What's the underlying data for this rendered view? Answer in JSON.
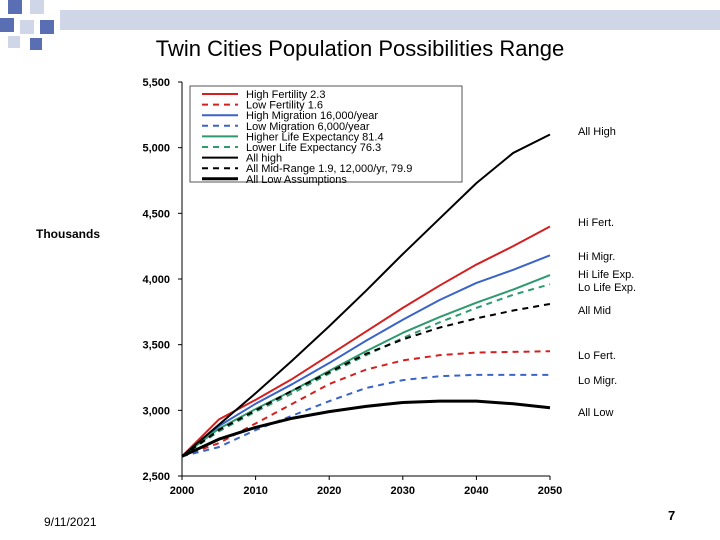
{
  "slide": {
    "title": "Twin Cities Population Possibilities Range",
    "date": "9/11/2021",
    "page_number": "7",
    "y_axis_label": "Thousands",
    "theme_color": "#cfd6e8",
    "theme_accent": "#5a6fb3"
  },
  "chart_data": {
    "type": "line",
    "title": "Twin Cities Population Possibilities Range",
    "xlabel": "",
    "ylabel": "Thousands",
    "xlim": [
      2000,
      2050
    ],
    "ylim": [
      2500,
      5500
    ],
    "x_ticks": [
      "2000",
      "2010",
      "2020",
      "2030",
      "2040",
      "2050"
    ],
    "y_ticks": [
      "2,500",
      "3,000",
      "3,500",
      "4,000",
      "4,500",
      "5,000",
      "5,500"
    ],
    "x": [
      2000,
      2005,
      2010,
      2015,
      2020,
      2025,
      2030,
      2035,
      2040,
      2045,
      2050
    ],
    "series": [
      {
        "name": "High Fertility 2.3",
        "color": "#d42020",
        "dash": "solid",
        "values": [
          2650,
          2930,
          3080,
          3240,
          3420,
          3600,
          3780,
          3950,
          4110,
          4250,
          4400
        ]
      },
      {
        "name": "Low Fertility 1.6",
        "color": "#d42020",
        "dash": "dashed",
        "values": [
          2650,
          2750,
          2900,
          3050,
          3200,
          3310,
          3380,
          3420,
          3440,
          3445,
          3450
        ]
      },
      {
        "name": "High Migration 16,000/year",
        "color": "#3a64c8",
        "dash": "solid",
        "values": [
          2650,
          2880,
          3050,
          3200,
          3360,
          3530,
          3690,
          3840,
          3970,
          4070,
          4180
        ]
      },
      {
        "name": "Low Migration 6,000/year",
        "color": "#3a64c8",
        "dash": "dashed",
        "values": [
          2650,
          2720,
          2850,
          2960,
          3070,
          3170,
          3230,
          3260,
          3270,
          3270,
          3270
        ]
      },
      {
        "name": "Higher Life Expectancy 81.4",
        "color": "#2e9a6e",
        "dash": "solid",
        "values": [
          2650,
          2860,
          3010,
          3150,
          3300,
          3450,
          3590,
          3710,
          3820,
          3920,
          4030
        ]
      },
      {
        "name": "Lower Life Expectancy 76.3",
        "color": "#2e9a6e",
        "dash": "dashed",
        "values": [
          2650,
          2840,
          2990,
          3130,
          3280,
          3420,
          3550,
          3670,
          3780,
          3880,
          3960
        ]
      },
      {
        "name": "All high",
        "color": "#000000",
        "dash": "solid",
        "values": [
          2650,
          2890,
          3130,
          3380,
          3640,
          3910,
          4190,
          4460,
          4730,
          4960,
          5100
        ]
      },
      {
        "name": "All Mid-Range 1.9, 12,000/yr, 79.9",
        "color": "#000000",
        "dash": "dashed",
        "values": [
          2650,
          2850,
          3000,
          3150,
          3290,
          3430,
          3540,
          3630,
          3700,
          3760,
          3810
        ]
      },
      {
        "name": "All Low Assumptions",
        "color": "#000000",
        "dash": "thick",
        "values": [
          2650,
          2780,
          2870,
          2940,
          2990,
          3030,
          3060,
          3070,
          3070,
          3050,
          3020
        ]
      }
    ],
    "right_annotations": [
      {
        "text": "All High",
        "value": 5100
      },
      {
        "text": "Hi Fert.",
        "value": 4400
      },
      {
        "text": "Hi Migr.",
        "value": 4180
      },
      {
        "text": "Hi Life Exp.",
        "value": 4030
      },
      {
        "text": "Lo Life Exp.",
        "value": 3950
      },
      {
        "text": "All Mid",
        "value": 3810
      },
      {
        "text": "Lo Fert.",
        "value": 3450
      },
      {
        "text": "Lo Migr.",
        "value": 3270
      },
      {
        "text": "All Low",
        "value": 3020
      }
    ],
    "legend_position": "top-left-inside"
  }
}
